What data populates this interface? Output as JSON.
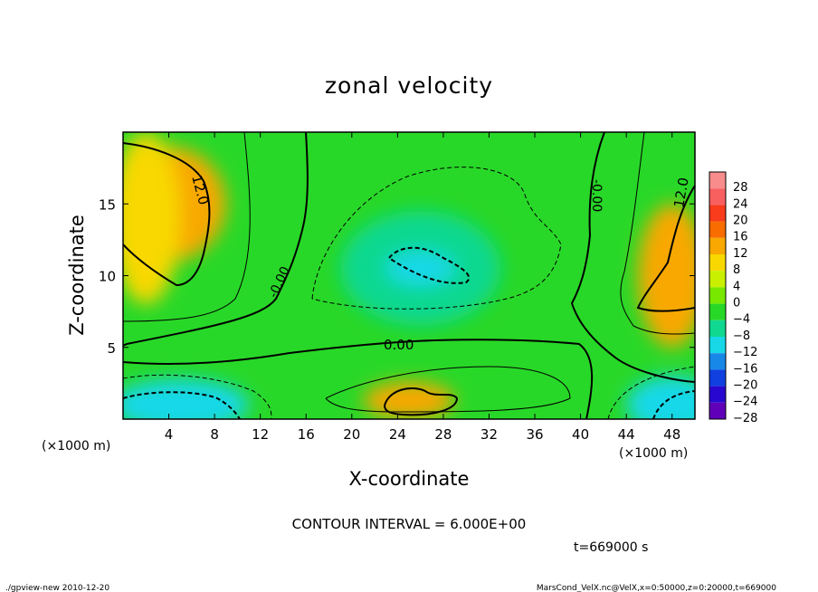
{
  "chart_data": {
    "type": "heatmap",
    "title": "zonal velocity",
    "xlabel": "X-coordinate",
    "ylabel": "Z-coordinate",
    "x_unit_left": "(×1000 m)",
    "x_unit_right": "(×1000 m)",
    "xlim": [
      0,
      50
    ],
    "ylim": [
      0,
      20
    ],
    "x_ticks": [
      4,
      8,
      12,
      16,
      20,
      24,
      28,
      32,
      36,
      40,
      44,
      48
    ],
    "y_ticks": [
      5,
      10,
      15
    ],
    "colorbar_levels": [
      28,
      24,
      20,
      16,
      12,
      8,
      4,
      0,
      -4,
      -8,
      -12,
      -16,
      -20,
      -24,
      -28
    ],
    "colorbar_colors": [
      "#f88c8c",
      "#f86060",
      "#f83c1c",
      "#f86c00",
      "#f8a800",
      "#f8d800",
      "#c8f000",
      "#78e800",
      "#28d828",
      "#10d890",
      "#18d8e8",
      "#1888e8",
      "#1040e0",
      "#2808d0",
      "#6000b8"
    ],
    "contour_labels": [
      "12.0",
      "-0.00",
      "0.00",
      "-0.00",
      "12.0"
    ],
    "contour_interval_text": "CONTOUR INTERVAL = 6.000E+00",
    "time_text": "t=669000 s",
    "footer_left": "./gpview-new  2010-12-20",
    "footer_right": "MarsCond_VelX.nc@VelX,x=0:50000,z=0:20000,t=669000",
    "field_regions": [
      {
        "cx": 4,
        "cz": 15,
        "rx": 5,
        "rz": 4,
        "value": 14
      },
      {
        "cx": 2,
        "cz": 14,
        "rx": 3,
        "rz": 6,
        "value": 10
      },
      {
        "cx": 26,
        "cz": 10.5,
        "rx": 7,
        "rz": 4,
        "value": -8
      },
      {
        "cx": 26,
        "cz": 10.5,
        "rx": 3,
        "rz": 1.2,
        "value": -12
      },
      {
        "cx": 25,
        "cz": 1.3,
        "rx": 4,
        "rz": 1.3,
        "value": 12
      },
      {
        "cx": 5,
        "cz": 1,
        "rx": 6,
        "rz": 1.8,
        "value": -10
      },
      {
        "cx": 48,
        "cz": 1,
        "rx": 4,
        "rz": 2,
        "value": -10
      },
      {
        "cx": 48,
        "cz": 10,
        "rx": 3,
        "rz": 5,
        "value": 12
      }
    ]
  }
}
